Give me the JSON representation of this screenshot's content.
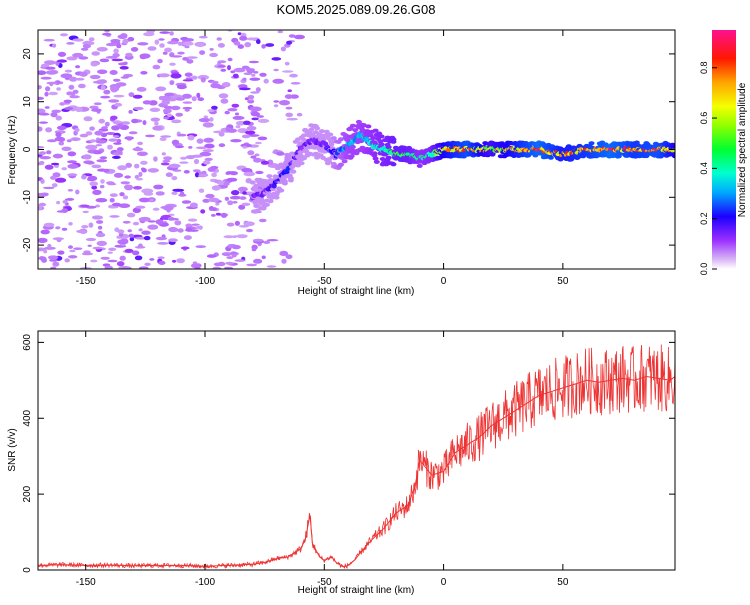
{
  "title": "KOM5.2025.089.09.26.G08",
  "colorbar": {
    "label": "Normalized spectral amplitude",
    "ticks": [
      0.0,
      0.2,
      0.4,
      0.6,
      0.8
    ],
    "tick_labels": [
      "0.0",
      "0.2",
      "0.4",
      "0.6",
      "0.8"
    ]
  },
  "chart_data": [
    {
      "type": "heatmap",
      "title": "KOM5.2025.089.09.26.G08",
      "xlabel": "Height of straight line (km)",
      "ylabel": "Frequency (Hz)",
      "xlim": [
        -170,
        97
      ],
      "ylim": [
        -25,
        25
      ],
      "x_ticks": [
        -150,
        -100,
        -50,
        0,
        50
      ],
      "y_ticks": [
        -20,
        -10,
        0,
        10,
        20
      ],
      "value_range": [
        0.0,
        0.95
      ],
      "ridge": {
        "x": [
          -80,
          -75,
          -70,
          -65,
          -60,
          -55,
          -50,
          -45,
          -40,
          -35,
          -30,
          -25,
          -20,
          -15,
          -10,
          -5,
          0,
          10,
          20,
          30,
          40,
          50,
          60,
          70,
          80,
          90,
          97
        ],
        "freq": [
          -10,
          -9,
          -7,
          -4,
          0,
          2,
          1,
          -1,
          1,
          3,
          1,
          0,
          -1,
          -1,
          -2,
          -1,
          0,
          0,
          0,
          0,
          0,
          -1,
          0,
          0,
          0,
          0,
          0
        ],
        "amplitude": [
          0.15,
          0.15,
          0.2,
          0.22,
          0.15,
          0.15,
          0.15,
          0.25,
          0.35,
          0.35,
          0.4,
          0.45,
          0.5,
          0.5,
          0.4,
          0.45,
          0.7,
          0.85,
          0.6,
          0.75,
          0.9,
          0.75,
          0.8,
          0.9,
          0.8,
          0.85,
          0.7
        ]
      },
      "noise_region": {
        "x_range": [
          -170,
          -75
        ],
        "freq_range": [
          -25,
          25
        ],
        "amplitude": 0.05
      }
    },
    {
      "type": "line",
      "xlabel": "Height of straight line (km)",
      "ylabel": "SNR (v/v)",
      "xlim": [
        -170,
        97
      ],
      "ylim": [
        0,
        630
      ],
      "x_ticks": [
        -150,
        -100,
        -50,
        0,
        50
      ],
      "y_ticks": [
        0,
        200,
        400,
        600
      ],
      "color": "#ee3333",
      "series": [
        {
          "x": [
            -170,
            -160,
            -150,
            -140,
            -130,
            -120,
            -110,
            -100,
            -90,
            -80,
            -75,
            -70,
            -65,
            -60,
            -58,
            -56,
            -55,
            -52,
            -50,
            -47,
            -45,
            -42,
            -40,
            -37,
            -35,
            -30,
            -25,
            -20,
            -15,
            -12,
            -10,
            -5,
            0,
            5,
            10,
            15,
            20,
            25,
            30,
            35,
            40,
            45,
            50,
            55,
            60,
            65,
            70,
            75,
            80,
            85,
            90,
            95,
            97
          ],
          "values": [
            12,
            14,
            12,
            13,
            11,
            12,
            12,
            10,
            12,
            15,
            20,
            30,
            35,
            55,
            80,
            145,
            70,
            35,
            25,
            35,
            20,
            8,
            12,
            28,
            45,
            80,
            110,
            150,
            170,
            220,
            290,
            250,
            260,
            310,
            330,
            350,
            380,
            400,
            420,
            440,
            460,
            470,
            480,
            490,
            500,
            495,
            500,
            505,
            500,
            510,
            505,
            500,
            510
          ]
        }
      ]
    }
  ]
}
